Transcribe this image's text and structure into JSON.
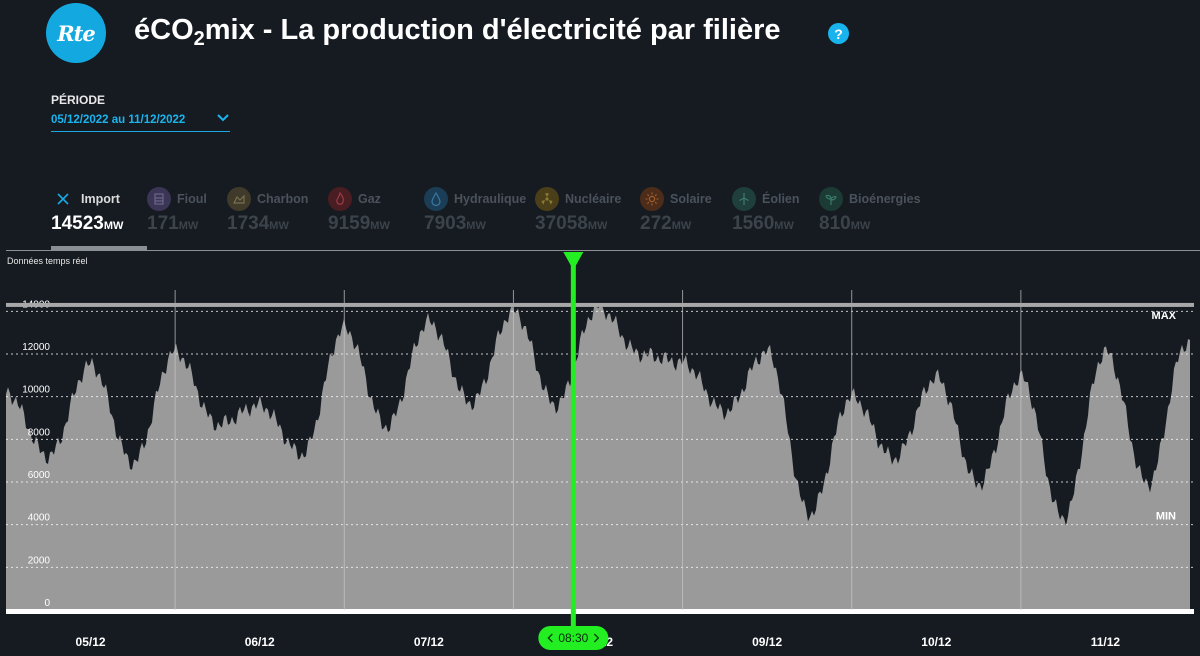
{
  "header": {
    "logo_text": "Rte",
    "title_prefix": "éCO",
    "title_sub": "2",
    "title_suffix": "mix - La production d'électricité par filière",
    "help_label": "?"
  },
  "period": {
    "label": "PÉRIODE",
    "value": "05/12/2022 au 11/12/2022"
  },
  "tabs": [
    {
      "label": "Import",
      "value": "14523",
      "unit": "MW",
      "icon": "close-icon",
      "color": "#1aa8e0",
      "active": true
    },
    {
      "label": "Fioul",
      "value": "171",
      "unit": "MW",
      "icon": "oil-barrel-icon",
      "color": "#3b3556"
    },
    {
      "label": "Charbon",
      "value": "1734",
      "unit": "MW",
      "icon": "coal-icon",
      "color": "#3f3a2a"
    },
    {
      "label": "Gaz",
      "value": "9159",
      "unit": "MW",
      "icon": "flame-icon",
      "color": "#4a1d22"
    },
    {
      "label": "Hydraulique",
      "value": "7903",
      "unit": "MW",
      "icon": "water-drop-icon",
      "color": "#1b3d55"
    },
    {
      "label": "Nucléaire",
      "value": "37058",
      "unit": "MW",
      "icon": "nuclear-icon",
      "color": "#4a3f18"
    },
    {
      "label": "Solaire",
      "value": "272",
      "unit": "MW",
      "icon": "sun-icon",
      "color": "#4d2d19"
    },
    {
      "label": "Éolien",
      "value": "1560",
      "unit": "MW",
      "icon": "wind-turbine-icon",
      "color": "#1e3f3b"
    },
    {
      "label": "Bioénergies",
      "value": "810",
      "unit": "MW",
      "icon": "sprout-icon",
      "color": "#1b3b34"
    }
  ],
  "chart_realtime_label": "Données temps réel",
  "cursor_time": "08:30",
  "cursor_color": "#22ee22",
  "chart_data": {
    "type": "area",
    "series": [
      {
        "name": "Import",
        "unit": "MW",
        "color": "#9a9a9a",
        "x": [
          "05/12 00:00",
          "05/12 06:00",
          "05/12 12:00",
          "05/12 18:00",
          "06/12 00:00",
          "06/12 06:00",
          "06/12 12:00",
          "06/12 18:00",
          "07/12 00:00",
          "07/12 06:00",
          "07/12 12:00",
          "07/12 18:00",
          "08/12 00:00",
          "08/12 06:00",
          "08/12 12:00",
          "08/12 18:00",
          "09/12 00:00",
          "09/12 06:00",
          "09/12 12:00",
          "09/12 18:00",
          "10/12 00:00",
          "10/12 06:00",
          "10/12 12:00",
          "10/12 18:00",
          "11/12 00:00",
          "11/12 06:00",
          "11/12 12:00",
          "11/12 18:00",
          "11/12 23:30"
        ],
        "values": [
          10200,
          7200,
          11500,
          6900,
          12100,
          8700,
          9600,
          7300,
          13200,
          8600,
          13500,
          9700,
          14000,
          9600,
          14200,
          12000,
          11600,
          9300,
          12100,
          4500,
          10000,
          7100,
          10900,
          5900,
          10900,
          4300,
          12100,
          5900,
          12500
        ]
      }
    ],
    "x_tick_labels": [
      "05/12",
      "06/12",
      "07/12",
      "08/12",
      "09/12",
      "10/12",
      "11/12"
    ],
    "y_ticks": [
      0,
      2000,
      4000,
      6000,
      8000,
      10000,
      12000,
      14000
    ],
    "ylim": [
      0,
      15000
    ],
    "max_label": "MAX",
    "max_value": 14300,
    "min_label": "MIN",
    "min_value": 4300,
    "grid": true
  }
}
